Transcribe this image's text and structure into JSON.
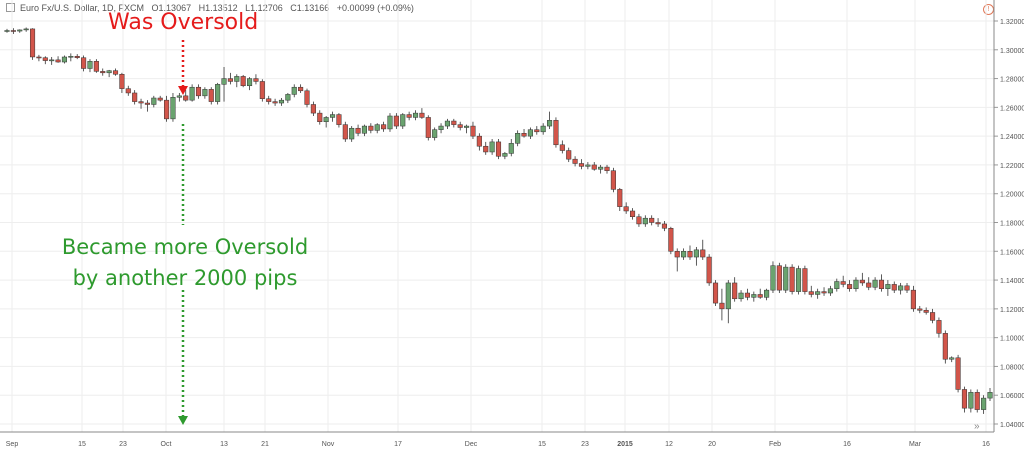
{
  "header": {
    "symbol": "Euro Fx/U.S. Dollar, 1D, FXCM",
    "open": "O1.13067",
    "high": "H1.13512",
    "low": "L1.12706",
    "close": "C1.13166",
    "change": "+0.00099 (+0.09%)"
  },
  "annotations": {
    "top": "Was Oversold",
    "bottom_line1": "Became more Oversold",
    "bottom_line2": "by another 2000 pips"
  },
  "colors": {
    "up": "#6aa36f",
    "down": "#d2554a",
    "red_annotation": "#e51b1b",
    "green_annotation": "#2e9a2e",
    "grid": "#eeeeee"
  },
  "chart_data": {
    "type": "candlestick",
    "title": "Euro Fx/U.S. Dollar, 1D, FXCM",
    "ylim": [
      1.03,
      1.33
    ],
    "yticks": [
      "1.32000",
      "1.30000",
      "1.28000",
      "1.26000",
      "1.24000",
      "1.22000",
      "1.20000",
      "1.18000",
      "1.16000",
      "1.14000",
      "1.12000",
      "1.10000",
      "1.08000",
      "1.06000",
      "1.04000"
    ],
    "xticks": [
      "Sep",
      "8",
      "15",
      "23",
      "Oct",
      "13",
      "21",
      "Nov",
      "17",
      "Dec",
      "15",
      "23",
      "2015",
      "12",
      "20",
      "Feb",
      "16",
      "Mar",
      "16"
    ],
    "candles": [
      {
        "o": 1.3132,
        "h": 1.3145,
        "l": 1.3118,
        "c": 1.3134
      },
      {
        "o": 1.3134,
        "h": 1.315,
        "l": 1.311,
        "c": 1.313
      },
      {
        "o": 1.313,
        "h": 1.3142,
        "l": 1.3118,
        "c": 1.3138
      },
      {
        "o": 1.3138,
        "h": 1.3155,
        "l": 1.3125,
        "c": 1.3145
      },
      {
        "o": 1.3145,
        "h": 1.315,
        "l": 1.293,
        "c": 1.295
      },
      {
        "o": 1.295,
        "h": 1.2965,
        "l": 1.292,
        "c": 1.2945
      },
      {
        "o": 1.2945,
        "h": 1.2955,
        "l": 1.29,
        "c": 1.2925
      },
      {
        "o": 1.2925,
        "h": 1.295,
        "l": 1.2895,
        "c": 1.293
      },
      {
        "o": 1.293,
        "h": 1.2955,
        "l": 1.291,
        "c": 1.2915
      },
      {
        "o": 1.2915,
        "h": 1.296,
        "l": 1.2905,
        "c": 1.295
      },
      {
        "o": 1.295,
        "h": 1.2975,
        "l": 1.292,
        "c": 1.2955
      },
      {
        "o": 1.2955,
        "h": 1.297,
        "l": 1.2935,
        "c": 1.2945
      },
      {
        "o": 1.2945,
        "h": 1.296,
        "l": 1.285,
        "c": 1.287
      },
      {
        "o": 1.287,
        "h": 1.2935,
        "l": 1.2845,
        "c": 1.292
      },
      {
        "o": 1.292,
        "h": 1.2935,
        "l": 1.284,
        "c": 1.285
      },
      {
        "o": 1.285,
        "h": 1.287,
        "l": 1.282,
        "c": 1.284
      },
      {
        "o": 1.284,
        "h": 1.286,
        "l": 1.281,
        "c": 1.2855
      },
      {
        "o": 1.2855,
        "h": 1.287,
        "l": 1.282,
        "c": 1.283
      },
      {
        "o": 1.283,
        "h": 1.284,
        "l": 1.27,
        "c": 1.273
      },
      {
        "o": 1.273,
        "h": 1.275,
        "l": 1.268,
        "c": 1.27
      },
      {
        "o": 1.27,
        "h": 1.272,
        "l": 1.262,
        "c": 1.264
      },
      {
        "o": 1.264,
        "h": 1.266,
        "l": 1.259,
        "c": 1.263
      },
      {
        "o": 1.263,
        "h": 1.265,
        "l": 1.257,
        "c": 1.262
      },
      {
        "o": 1.262,
        "h": 1.268,
        "l": 1.26,
        "c": 1.2665
      },
      {
        "o": 1.2665,
        "h": 1.268,
        "l": 1.264,
        "c": 1.265
      },
      {
        "o": 1.265,
        "h": 1.268,
        "l": 1.25,
        "c": 1.252
      },
      {
        "o": 1.252,
        "h": 1.27,
        "l": 1.25,
        "c": 1.267
      },
      {
        "o": 1.267,
        "h": 1.27,
        "l": 1.264,
        "c": 1.268
      },
      {
        "o": 1.268,
        "h": 1.272,
        "l": 1.264,
        "c": 1.265
      },
      {
        "o": 1.265,
        "h": 1.276,
        "l": 1.264,
        "c": 1.274
      },
      {
        "o": 1.274,
        "h": 1.276,
        "l": 1.266,
        "c": 1.268
      },
      {
        "o": 1.268,
        "h": 1.274,
        "l": 1.266,
        "c": 1.2725
      },
      {
        "o": 1.2725,
        "h": 1.274,
        "l": 1.262,
        "c": 1.264
      },
      {
        "o": 1.264,
        "h": 1.277,
        "l": 1.262,
        "c": 1.276
      },
      {
        "o": 1.276,
        "h": 1.288,
        "l": 1.264,
        "c": 1.28
      },
      {
        "o": 1.28,
        "h": 1.284,
        "l": 1.276,
        "c": 1.278
      },
      {
        "o": 1.278,
        "h": 1.283,
        "l": 1.274,
        "c": 1.2815
      },
      {
        "o": 1.2815,
        "h": 1.2825,
        "l": 1.274,
        "c": 1.275
      },
      {
        "o": 1.275,
        "h": 1.281,
        "l": 1.272,
        "c": 1.28
      },
      {
        "o": 1.28,
        "h": 1.283,
        "l": 1.276,
        "c": 1.278
      },
      {
        "o": 1.278,
        "h": 1.2795,
        "l": 1.264,
        "c": 1.266
      },
      {
        "o": 1.266,
        "h": 1.268,
        "l": 1.262,
        "c": 1.264
      },
      {
        "o": 1.264,
        "h": 1.266,
        "l": 1.261,
        "c": 1.263
      },
      {
        "o": 1.263,
        "h": 1.2665,
        "l": 1.261,
        "c": 1.265
      },
      {
        "o": 1.265,
        "h": 1.27,
        "l": 1.263,
        "c": 1.269
      },
      {
        "o": 1.269,
        "h": 1.276,
        "l": 1.267,
        "c": 1.274
      },
      {
        "o": 1.274,
        "h": 1.276,
        "l": 1.27,
        "c": 1.2715
      },
      {
        "o": 1.2715,
        "h": 1.273,
        "l": 1.26,
        "c": 1.262
      },
      {
        "o": 1.262,
        "h": 1.264,
        "l": 1.254,
        "c": 1.256
      },
      {
        "o": 1.256,
        "h": 1.258,
        "l": 1.248,
        "c": 1.25
      },
      {
        "o": 1.25,
        "h": 1.254,
        "l": 1.246,
        "c": 1.253
      },
      {
        "o": 1.253,
        "h": 1.257,
        "l": 1.25,
        "c": 1.255
      },
      {
        "o": 1.255,
        "h": 1.256,
        "l": 1.246,
        "c": 1.248
      },
      {
        "o": 1.248,
        "h": 1.25,
        "l": 1.236,
        "c": 1.238
      },
      {
        "o": 1.238,
        "h": 1.247,
        "l": 1.236,
        "c": 1.2455
      },
      {
        "o": 1.2455,
        "h": 1.248,
        "l": 1.24,
        "c": 1.242
      },
      {
        "o": 1.242,
        "h": 1.248,
        "l": 1.24,
        "c": 1.247
      },
      {
        "o": 1.247,
        "h": 1.249,
        "l": 1.242,
        "c": 1.244
      },
      {
        "o": 1.244,
        "h": 1.249,
        "l": 1.242,
        "c": 1.248
      },
      {
        "o": 1.248,
        "h": 1.25,
        "l": 1.243,
        "c": 1.245
      },
      {
        "o": 1.245,
        "h": 1.256,
        "l": 1.243,
        "c": 1.254
      },
      {
        "o": 1.254,
        "h": 1.256,
        "l": 1.245,
        "c": 1.247
      },
      {
        "o": 1.247,
        "h": 1.256,
        "l": 1.245,
        "c": 1.255
      },
      {
        "o": 1.255,
        "h": 1.257,
        "l": 1.251,
        "c": 1.253
      },
      {
        "o": 1.253,
        "h": 1.258,
        "l": 1.251,
        "c": 1.256
      },
      {
        "o": 1.256,
        "h": 1.2595,
        "l": 1.252,
        "c": 1.253
      },
      {
        "o": 1.253,
        "h": 1.2545,
        "l": 1.237,
        "c": 1.239
      },
      {
        "o": 1.239,
        "h": 1.246,
        "l": 1.237,
        "c": 1.2445
      },
      {
        "o": 1.2445,
        "h": 1.249,
        "l": 1.242,
        "c": 1.247
      },
      {
        "o": 1.247,
        "h": 1.252,
        "l": 1.245,
        "c": 1.2505
      },
      {
        "o": 1.2505,
        "h": 1.252,
        "l": 1.246,
        "c": 1.248
      },
      {
        "o": 1.248,
        "h": 1.25,
        "l": 1.244,
        "c": 1.246
      },
      {
        "o": 1.246,
        "h": 1.248,
        "l": 1.242,
        "c": 1.247
      },
      {
        "o": 1.247,
        "h": 1.25,
        "l": 1.238,
        "c": 1.24
      },
      {
        "o": 1.24,
        "h": 1.242,
        "l": 1.23,
        "c": 1.233
      },
      {
        "o": 1.233,
        "h": 1.236,
        "l": 1.227,
        "c": 1.229
      },
      {
        "o": 1.229,
        "h": 1.238,
        "l": 1.227,
        "c": 1.236
      },
      {
        "o": 1.236,
        "h": 1.238,
        "l": 1.224,
        "c": 1.226
      },
      {
        "o": 1.226,
        "h": 1.229,
        "l": 1.224,
        "c": 1.228
      },
      {
        "o": 1.228,
        "h": 1.238,
        "l": 1.226,
        "c": 1.235
      },
      {
        "o": 1.235,
        "h": 1.244,
        "l": 1.233,
        "c": 1.242
      },
      {
        "o": 1.242,
        "h": 1.245,
        "l": 1.239,
        "c": 1.24
      },
      {
        "o": 1.24,
        "h": 1.246,
        "l": 1.238,
        "c": 1.2445
      },
      {
        "o": 1.2445,
        "h": 1.247,
        "l": 1.241,
        "c": 1.243
      },
      {
        "o": 1.243,
        "h": 1.249,
        "l": 1.241,
        "c": 1.247
      },
      {
        "o": 1.247,
        "h": 1.257,
        "l": 1.245,
        "c": 1.251
      },
      {
        "o": 1.251,
        "h": 1.253,
        "l": 1.232,
        "c": 1.234
      },
      {
        "o": 1.234,
        "h": 1.237,
        "l": 1.228,
        "c": 1.23
      },
      {
        "o": 1.23,
        "h": 1.232,
        "l": 1.222,
        "c": 1.224
      },
      {
        "o": 1.224,
        "h": 1.226,
        "l": 1.219,
        "c": 1.221
      },
      {
        "o": 1.221,
        "h": 1.224,
        "l": 1.217,
        "c": 1.219
      },
      {
        "o": 1.219,
        "h": 1.222,
        "l": 1.217,
        "c": 1.22
      },
      {
        "o": 1.22,
        "h": 1.222,
        "l": 1.216,
        "c": 1.217
      },
      {
        "o": 1.217,
        "h": 1.22,
        "l": 1.214,
        "c": 1.2185
      },
      {
        "o": 1.2185,
        "h": 1.22,
        "l": 1.214,
        "c": 1.216
      },
      {
        "o": 1.216,
        "h": 1.218,
        "l": 1.201,
        "c": 1.203
      },
      {
        "o": 1.203,
        "h": 1.204,
        "l": 1.188,
        "c": 1.191
      },
      {
        "o": 1.191,
        "h": 1.194,
        "l": 1.186,
        "c": 1.188
      },
      {
        "o": 1.188,
        "h": 1.19,
        "l": 1.182,
        "c": 1.184
      },
      {
        "o": 1.184,
        "h": 1.186,
        "l": 1.177,
        "c": 1.179
      },
      {
        "o": 1.179,
        "h": 1.185,
        "l": 1.177,
        "c": 1.183
      },
      {
        "o": 1.183,
        "h": 1.185,
        "l": 1.178,
        "c": 1.18
      },
      {
        "o": 1.18,
        "h": 1.183,
        "l": 1.177,
        "c": 1.179
      },
      {
        "o": 1.179,
        "h": 1.181,
        "l": 1.174,
        "c": 1.176
      },
      {
        "o": 1.176,
        "h": 1.177,
        "l": 1.158,
        "c": 1.16
      },
      {
        "o": 1.16,
        "h": 1.162,
        "l": 1.146,
        "c": 1.156
      },
      {
        "o": 1.156,
        "h": 1.162,
        "l": 1.154,
        "c": 1.16
      },
      {
        "o": 1.16,
        "h": 1.164,
        "l": 1.154,
        "c": 1.156
      },
      {
        "o": 1.156,
        "h": 1.163,
        "l": 1.15,
        "c": 1.161
      },
      {
        "o": 1.161,
        "h": 1.168,
        "l": 1.154,
        "c": 1.156
      },
      {
        "o": 1.156,
        "h": 1.158,
        "l": 1.136,
        "c": 1.138
      },
      {
        "o": 1.138,
        "h": 1.14,
        "l": 1.122,
        "c": 1.124
      },
      {
        "o": 1.124,
        "h": 1.134,
        "l": 1.112,
        "c": 1.12
      },
      {
        "o": 1.12,
        "h": 1.14,
        "l": 1.11,
        "c": 1.138
      },
      {
        "o": 1.138,
        "h": 1.142,
        "l": 1.125,
        "c": 1.127
      },
      {
        "o": 1.127,
        "h": 1.133,
        "l": 1.125,
        "c": 1.131
      },
      {
        "o": 1.131,
        "h": 1.134,
        "l": 1.126,
        "c": 1.128
      },
      {
        "o": 1.128,
        "h": 1.132,
        "l": 1.125,
        "c": 1.13
      },
      {
        "o": 1.13,
        "h": 1.134,
        "l": 1.127,
        "c": 1.128
      },
      {
        "o": 1.128,
        "h": 1.134,
        "l": 1.126,
        "c": 1.133
      },
      {
        "o": 1.133,
        "h": 1.153,
        "l": 1.131,
        "c": 1.15
      },
      {
        "o": 1.15,
        "h": 1.152,
        "l": 1.131,
        "c": 1.133
      },
      {
        "o": 1.133,
        "h": 1.151,
        "l": 1.131,
        "c": 1.149
      },
      {
        "o": 1.149,
        "h": 1.151,
        "l": 1.13,
        "c": 1.132
      },
      {
        "o": 1.132,
        "h": 1.15,
        "l": 1.13,
        "c": 1.148
      },
      {
        "o": 1.148,
        "h": 1.15,
        "l": 1.13,
        "c": 1.132
      },
      {
        "o": 1.132,
        "h": 1.136,
        "l": 1.128,
        "c": 1.13
      },
      {
        "o": 1.13,
        "h": 1.134,
        "l": 1.127,
        "c": 1.132
      },
      {
        "o": 1.132,
        "h": 1.135,
        "l": 1.129,
        "c": 1.131
      },
      {
        "o": 1.131,
        "h": 1.136,
        "l": 1.129,
        "c": 1.134
      },
      {
        "o": 1.134,
        "h": 1.141,
        "l": 1.132,
        "c": 1.139
      },
      {
        "o": 1.139,
        "h": 1.143,
        "l": 1.135,
        "c": 1.137
      },
      {
        "o": 1.137,
        "h": 1.14,
        "l": 1.132,
        "c": 1.134
      },
      {
        "o": 1.134,
        "h": 1.142,
        "l": 1.132,
        "c": 1.14
      },
      {
        "o": 1.14,
        "h": 1.145,
        "l": 1.136,
        "c": 1.138
      },
      {
        "o": 1.138,
        "h": 1.142,
        "l": 1.133,
        "c": 1.135
      },
      {
        "o": 1.135,
        "h": 1.142,
        "l": 1.133,
        "c": 1.14
      },
      {
        "o": 1.14,
        "h": 1.144,
        "l": 1.132,
        "c": 1.134
      },
      {
        "o": 1.134,
        "h": 1.14,
        "l": 1.129,
        "c": 1.137
      },
      {
        "o": 1.137,
        "h": 1.139,
        "l": 1.131,
        "c": 1.133
      },
      {
        "o": 1.133,
        "h": 1.138,
        "l": 1.13,
        "c": 1.136
      },
      {
        "o": 1.136,
        "h": 1.138,
        "l": 1.131,
        "c": 1.133
      },
      {
        "o": 1.133,
        "h": 1.136,
        "l": 1.118,
        "c": 1.12
      },
      {
        "o": 1.12,
        "h": 1.122,
        "l": 1.117,
        "c": 1.119
      },
      {
        "o": 1.119,
        "h": 1.121,
        "l": 1.116,
        "c": 1.1175
      },
      {
        "o": 1.1175,
        "h": 1.12,
        "l": 1.11,
        "c": 1.112
      },
      {
        "o": 1.112,
        "h": 1.114,
        "l": 1.1,
        "c": 1.103
      },
      {
        "o": 1.103,
        "h": 1.105,
        "l": 1.082,
        "c": 1.085
      },
      {
        "o": 1.085,
        "h": 1.087,
        "l": 1.083,
        "c": 1.086
      },
      {
        "o": 1.086,
        "h": 1.088,
        "l": 1.062,
        "c": 1.064
      },
      {
        "o": 1.064,
        "h": 1.066,
        "l": 1.048,
        "c": 1.051
      },
      {
        "o": 1.051,
        "h": 1.064,
        "l": 1.048,
        "c": 1.062
      },
      {
        "o": 1.062,
        "h": 1.064,
        "l": 1.048,
        "c": 1.05
      },
      {
        "o": 1.05,
        "h": 1.06,
        "l": 1.047,
        "c": 1.058
      },
      {
        "o": 1.058,
        "h": 1.065,
        "l": 1.056,
        "c": 1.062
      }
    ]
  }
}
